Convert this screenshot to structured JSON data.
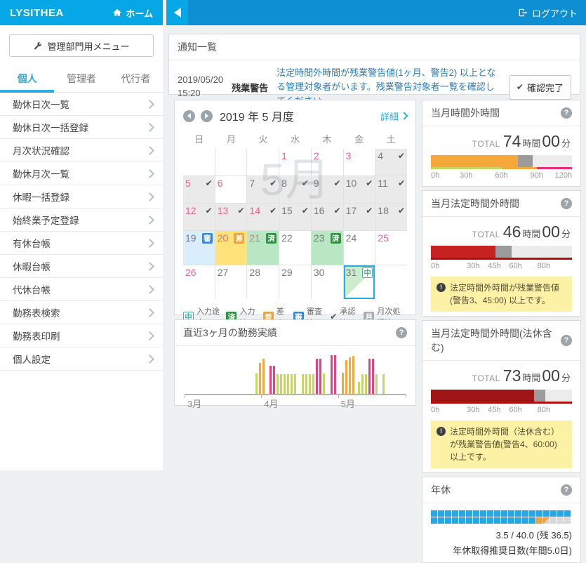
{
  "header": {
    "brand": "LYSITHEA",
    "home_label": "ホーム",
    "logout_label": "ログアウト"
  },
  "icons": {
    "home": "home-icon",
    "logout": "sign-out-icon",
    "wrench": "wrench-icon",
    "help": "?",
    "warning": "!",
    "approved_check": "✔",
    "collapse": "left-triangle",
    "prev": "left-circle-arrow",
    "next": "right-circle-arrow"
  },
  "sidebar": {
    "admin_menu_label": "管理部門用メニュー",
    "tabs": [
      {
        "label": "個人",
        "active": true
      },
      {
        "label": "管理者",
        "active": false
      },
      {
        "label": "代行者",
        "active": false
      }
    ],
    "items": [
      "勤休日次一覧",
      "勤休日次一括登録",
      "月次状況確認",
      "勤休月次一覧",
      "休暇一括登録",
      "始終業予定登録",
      "有休台帳",
      "休暇台帳",
      "代休台帳",
      "勤務表検索",
      "勤務表印刷",
      "個人設定"
    ]
  },
  "notifications": {
    "title": "通知一覧",
    "item": {
      "date": "2019/05/20",
      "time": "15:20",
      "category": "残業警告",
      "message": "法定時間外時間が残業警告値(1ヶ月、警告2) 以上となる管理対象者がいます。残業警告対象者一覧を確認してください。",
      "confirm_label": "確認完了"
    }
  },
  "calendar": {
    "title": "2019 年 5 月度",
    "detail_label": "詳細",
    "watermark": "5月",
    "weekdays": [
      "日",
      "月",
      "火",
      "水",
      "木",
      "金",
      "土"
    ],
    "cells": [
      null,
      null,
      null,
      {
        "d": "1",
        "hol": true
      },
      {
        "d": "2",
        "hol": true
      },
      {
        "d": "3",
        "hol": true
      },
      {
        "d": "4",
        "bg": "gray",
        "check": true
      },
      {
        "d": "5",
        "hol": true,
        "bg": "gray",
        "check": true
      },
      {
        "d": "6",
        "hol": true
      },
      {
        "d": "7",
        "bg": "gray",
        "check": true
      },
      {
        "d": "8",
        "bg": "gray",
        "check": true
      },
      {
        "d": "9",
        "bg": "gray",
        "check": true
      },
      {
        "d": "10",
        "bg": "gray",
        "check": true
      },
      {
        "d": "11",
        "bg": "gray",
        "check": true
      },
      {
        "d": "12",
        "hol": true,
        "bg": "gray",
        "check": true
      },
      {
        "d": "13",
        "hol": true,
        "bg": "gray",
        "check": true
      },
      {
        "d": "14",
        "hol": true,
        "bg": "gray",
        "check": true
      },
      {
        "d": "15",
        "bg": "gray",
        "check": true
      },
      {
        "d": "16",
        "bg": "gray",
        "check": true
      },
      {
        "d": "17",
        "bg": "gray",
        "check": true
      },
      {
        "d": "18",
        "bg": "gray",
        "check": true
      },
      {
        "d": "19",
        "bg": "blue",
        "badge": "審"
      },
      {
        "d": "20",
        "hol": true,
        "bg": "yellow",
        "badge": "差"
      },
      {
        "d": "21",
        "hol": true,
        "bg": "green",
        "badge": "済"
      },
      {
        "d": "22"
      },
      {
        "d": "23",
        "bg": "green",
        "badge": "済"
      },
      {
        "d": "24"
      },
      {
        "d": "25",
        "hol": true
      },
      {
        "d": "26",
        "hol": true
      },
      {
        "d": "27"
      },
      {
        "d": "28"
      },
      {
        "d": "29"
      },
      {
        "d": "30"
      },
      {
        "d": "31",
        "bg": "select",
        "badge": "中"
      },
      null
    ],
    "legend": [
      {
        "badge": "中",
        "label": "入力途中"
      },
      {
        "badge": "済",
        "label": "入力済"
      },
      {
        "badge": "差",
        "label": "差戻"
      },
      {
        "badge": "審",
        "label": "審査済"
      },
      {
        "check": true,
        "label": "承認済"
      },
      {
        "badge": "月",
        "label": "月次処理済"
      }
    ]
  },
  "chart_data": {
    "type": "bar",
    "title": "直近3ヶ月の勤務実績",
    "x_ticks": [
      "3月",
      "4月",
      "5月"
    ],
    "tick_positions": [
      0,
      34.7,
      69.4
    ],
    "colors": {
      "g": "#c6d862",
      "o": "#f6a83b",
      "p": "#ed3f7e"
    },
    "bars": [
      {
        "x": 32,
        "h": 48,
        "c": "g"
      },
      {
        "x": 33.6,
        "h": 73,
        "c": "o"
      },
      {
        "x": 35.2,
        "h": 84,
        "c": "o"
      },
      {
        "x": 38.4,
        "h": 66,
        "c": "p"
      },
      {
        "x": 40,
        "h": 66,
        "c": "p"
      },
      {
        "x": 41.6,
        "h": 46,
        "c": "g"
      },
      {
        "x": 43.2,
        "h": 46,
        "c": "g"
      },
      {
        "x": 44.8,
        "h": 46,
        "c": "g"
      },
      {
        "x": 46.4,
        "h": 46,
        "c": "g"
      },
      {
        "x": 48,
        "h": 46,
        "c": "g"
      },
      {
        "x": 49.6,
        "h": 46,
        "c": "g"
      },
      {
        "x": 53,
        "h": 46,
        "c": "g"
      },
      {
        "x": 54.6,
        "h": 46,
        "c": "g"
      },
      {
        "x": 56.2,
        "h": 46,
        "c": "g"
      },
      {
        "x": 57.8,
        "h": 46,
        "c": "g"
      },
      {
        "x": 59.4,
        "h": 84,
        "c": "p"
      },
      {
        "x": 61,
        "h": 84,
        "c": "p"
      },
      {
        "x": 62.6,
        "h": 48,
        "c": "g"
      },
      {
        "x": 66,
        "h": 92,
        "c": "p"
      },
      {
        "x": 67.6,
        "h": 92,
        "c": "p"
      },
      {
        "x": 71,
        "h": 50,
        "c": "o"
      },
      {
        "x": 72.6,
        "h": 80,
        "c": "o"
      },
      {
        "x": 74.2,
        "h": 87,
        "c": "o"
      },
      {
        "x": 75.8,
        "h": 90,
        "c": "o"
      },
      {
        "x": 78.4,
        "h": 28,
        "c": "g"
      },
      {
        "x": 80,
        "h": 46,
        "c": "g"
      },
      {
        "x": 81.6,
        "h": 46,
        "c": "g"
      },
      {
        "x": 83.2,
        "h": 84,
        "c": "p"
      },
      {
        "x": 84.8,
        "h": 84,
        "c": "p"
      },
      {
        "x": 86.4,
        "h": 46,
        "c": "g"
      },
      {
        "x": 89.5,
        "h": 46,
        "c": "g"
      }
    ]
  },
  "units": {
    "total_label": "TOTAL",
    "hours": "時間",
    "minutes": "分"
  },
  "overtime_panels": [
    {
      "title": "当月時間外時間",
      "hours": "74",
      "minutes": "00",
      "fill_pct": 61.5,
      "fill_color": "#f6a83b",
      "gray_end_pct": 72,
      "ticks": [
        {
          "l": "0h",
          "p": 0
        },
        {
          "l": "30h",
          "p": 25
        },
        {
          "l": "60h",
          "p": 50
        },
        {
          "l": "90h",
          "p": 75
        },
        {
          "l": "120h",
          "p": 100
        }
      ],
      "underline": [
        {
          "c": "#c6d862",
          "from": 0,
          "to": 50
        },
        {
          "c": "#f6a83b",
          "from": 50,
          "to": 75
        },
        {
          "c": "#ed2a7b",
          "from": 75,
          "to": 100
        }
      ],
      "warning": null
    },
    {
      "title": "当月法定時間外時間",
      "hours": "46",
      "minutes": "00",
      "fill_pct": 46,
      "fill_color": "#c62222",
      "gray_end_pct": 57,
      "ticks": [
        {
          "l": "0h",
          "p": 0
        },
        {
          "l": "30h",
          "p": 30
        },
        {
          "l": "45h",
          "p": 45
        },
        {
          "l": "60h",
          "p": 60
        },
        {
          "l": "80h",
          "p": 80
        }
      ],
      "underline": [
        {
          "c": "#b40f0f",
          "from": 0,
          "to": 100
        }
      ],
      "warning": "法定時間外時間が残業警告値(警告3、45:00) 以上です。"
    },
    {
      "title": "当月法定時間外時間(法休含む)",
      "hours": "73",
      "minutes": "00",
      "fill_pct": 73,
      "fill_color": "#9e1616",
      "gray_end_pct": 81,
      "ticks": [
        {
          "l": "0h",
          "p": 0
        },
        {
          "l": "30h",
          "p": 30
        },
        {
          "l": "45h",
          "p": 45
        },
        {
          "l": "60h",
          "p": 60
        },
        {
          "l": "80h",
          "p": 80
        }
      ],
      "underline": [
        {
          "c": "#b40f0f",
          "from": 0,
          "to": 100
        }
      ],
      "warning": "法定時間外時間（法休含む）が残業警告値(警告4、60:00) 以上です。"
    }
  ],
  "annual_leave": {
    "title": "年休",
    "summary": "3.5 / 40.0 (残 36.5)",
    "note": "年休取得推奨日数(年間5.0日)",
    "square_rows": [
      "bbbbbbbbbbbbbbbbbbbb",
      "bbbbbbbbbbbbbbbohggg"
    ]
  }
}
